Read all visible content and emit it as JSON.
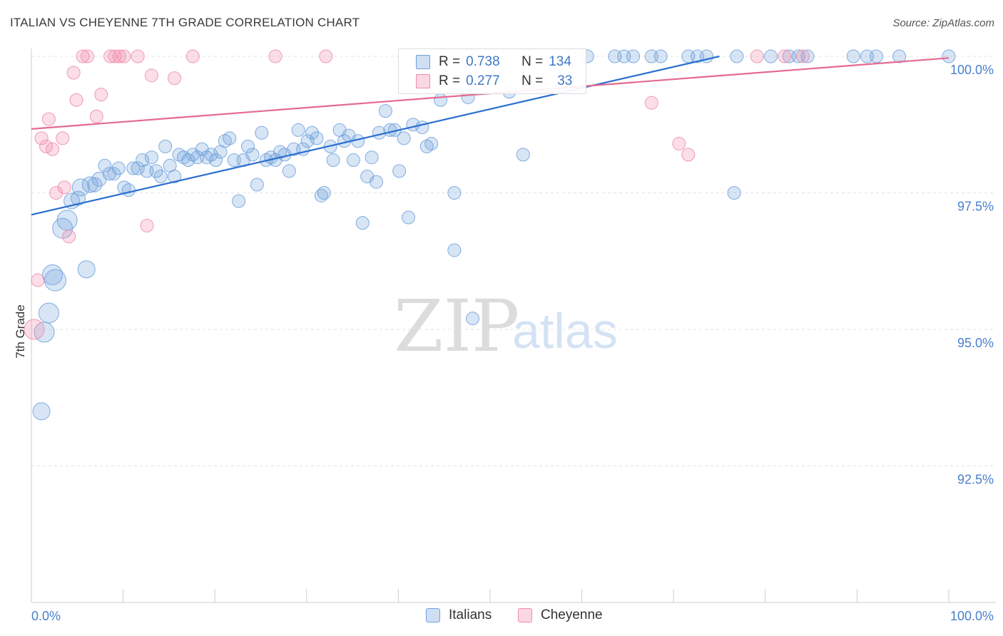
{
  "title": "ITALIAN VS CHEYENNE 7TH GRADE CORRELATION CHART",
  "source": "Source: ZipAtlas.com",
  "watermark": {
    "zip": "ZIP",
    "atlas": "atlas"
  },
  "legend": {
    "rows": [
      {
        "r_label": "R =",
        "r_value": "0.738",
        "n_label": "N =",
        "n_value": "134",
        "color": "#6fa0dc"
      },
      {
        "r_label": "R =",
        "r_value": "0.277",
        "n_label": "N =",
        "n_value": "33",
        "color": "#f08aaa"
      }
    ]
  },
  "bottom_legend": [
    {
      "label": "Italians",
      "color": "#6fa0dc"
    },
    {
      "label": "Cheyenne",
      "color": "#f08aaa"
    }
  ],
  "chart_data": {
    "type": "scatter",
    "title": "ITALIAN VS CHEYENNE 7TH GRADE CORRELATION CHART",
    "xlabel": "",
    "ylabel": "7th Grade",
    "xlim": [
      0,
      100
    ],
    "ylim": [
      90.2,
      100.35
    ],
    "x_tick_labels": [
      "0.0%",
      "100.0%"
    ],
    "y_ticks": [
      {
        "value": 100.0,
        "label": "100.0%"
      },
      {
        "value": 97.5,
        "label": "97.5%"
      },
      {
        "value": 95.0,
        "label": "95.0%"
      },
      {
        "value": 92.5,
        "label": "92.5%"
      }
    ],
    "grid": true,
    "series": [
      {
        "name": "Italians",
        "color": "#6fa0dc",
        "trend": {
          "x": [
            0,
            75
          ],
          "y": [
            97.1,
            100.0
          ]
        },
        "points": [
          [
            1.1,
            93.5,
            12
          ],
          [
            1.4,
            94.95,
            14
          ],
          [
            1.9,
            95.3,
            14
          ],
          [
            2.6,
            95.9,
            15
          ],
          [
            2.3,
            96.0,
            14
          ],
          [
            3.4,
            96.85,
            14
          ],
          [
            3.9,
            97.0,
            14
          ],
          [
            6.0,
            96.1,
            12
          ],
          [
            4.4,
            97.35,
            11
          ],
          [
            5.1,
            97.4,
            10
          ],
          [
            5.4,
            97.6,
            12
          ],
          [
            6.4,
            97.65,
            11
          ],
          [
            6.9,
            97.65,
            10
          ],
          [
            7.4,
            97.75,
            10
          ],
          [
            8.0,
            98.0,
            9
          ],
          [
            8.5,
            97.85,
            9
          ],
          [
            9.0,
            97.85,
            9
          ],
          [
            9.5,
            97.95,
            9
          ],
          [
            10.1,
            97.6,
            9
          ],
          [
            10.6,
            97.55,
            9
          ],
          [
            11.1,
            97.95,
            9
          ],
          [
            11.6,
            97.95,
            9
          ],
          [
            12.1,
            98.1,
            9
          ],
          [
            12.6,
            97.9,
            9
          ],
          [
            13.1,
            98.15,
            9
          ],
          [
            13.6,
            97.9,
            9
          ],
          [
            14.1,
            97.8,
            9
          ],
          [
            14.6,
            98.35,
            9
          ],
          [
            15.1,
            98.0,
            9
          ],
          [
            15.6,
            97.8,
            9
          ],
          [
            16.1,
            98.2,
            9
          ],
          [
            16.6,
            98.15,
            9
          ],
          [
            17.1,
            98.1,
            9
          ],
          [
            17.6,
            98.2,
            9
          ],
          [
            18.1,
            98.15,
            9
          ],
          [
            18.6,
            98.3,
            9
          ],
          [
            19.1,
            98.15,
            9
          ],
          [
            19.6,
            98.2,
            9
          ],
          [
            20.1,
            98.1,
            9
          ],
          [
            20.6,
            98.25,
            9
          ],
          [
            21.1,
            98.45,
            9
          ],
          [
            21.6,
            98.5,
            9
          ],
          [
            22.1,
            98.1,
            9
          ],
          [
            22.6,
            97.35,
            9
          ],
          [
            23.1,
            98.1,
            9
          ],
          [
            23.6,
            98.35,
            9
          ],
          [
            24.1,
            98.2,
            9
          ],
          [
            24.6,
            97.65,
            9
          ],
          [
            25.1,
            98.6,
            9
          ],
          [
            25.6,
            98.1,
            9
          ],
          [
            26.1,
            98.15,
            9
          ],
          [
            26.6,
            98.1,
            9
          ],
          [
            27.1,
            98.25,
            9
          ],
          [
            27.6,
            98.2,
            9
          ],
          [
            28.1,
            97.9,
            9
          ],
          [
            28.6,
            98.3,
            9
          ],
          [
            29.1,
            98.65,
            9
          ],
          [
            29.6,
            98.3,
            9
          ],
          [
            30.1,
            98.45,
            9
          ],
          [
            30.6,
            98.6,
            9
          ],
          [
            31.1,
            98.5,
            9
          ],
          [
            31.6,
            97.45,
            9
          ],
          [
            31.9,
            97.5,
            9
          ],
          [
            32.6,
            98.35,
            9
          ],
          [
            32.9,
            98.1,
            9
          ],
          [
            33.6,
            98.65,
            9
          ],
          [
            34.1,
            98.45,
            9
          ],
          [
            34.6,
            98.55,
            9
          ],
          [
            35.1,
            98.1,
            9
          ],
          [
            35.6,
            98.45,
            9
          ],
          [
            36.1,
            96.95,
            9
          ],
          [
            36.6,
            97.8,
            9
          ],
          [
            37.1,
            98.15,
            9
          ],
          [
            37.6,
            97.7,
            9
          ],
          [
            37.9,
            98.6,
            9
          ],
          [
            38.6,
            99.0,
            9
          ],
          [
            39.1,
            98.65,
            9
          ],
          [
            39.6,
            98.65,
            9
          ],
          [
            40.1,
            97.9,
            9
          ],
          [
            40.6,
            98.5,
            9
          ],
          [
            41.1,
            97.05,
            9
          ],
          [
            41.6,
            98.75,
            9
          ],
          [
            42.6,
            98.7,
            9
          ],
          [
            43.1,
            98.35,
            9
          ],
          [
            43.6,
            98.4,
            9
          ],
          [
            44.6,
            99.2,
            9
          ],
          [
            46.1,
            97.5,
            9
          ],
          [
            46.1,
            96.45,
            9
          ],
          [
            47.6,
            99.25,
            9
          ],
          [
            48.1,
            95.2,
            9
          ],
          [
            52.1,
            99.35,
            9
          ],
          [
            53.6,
            98.2,
            9
          ],
          [
            60.6,
            100.0,
            9
          ],
          [
            63.6,
            100.0,
            9
          ],
          [
            64.6,
            100.0,
            9
          ],
          [
            65.6,
            100.0,
            9
          ],
          [
            67.6,
            100.0,
            9
          ],
          [
            68.6,
            100.0,
            9
          ],
          [
            71.6,
            100.0,
            9
          ],
          [
            72.6,
            100.0,
            9
          ],
          [
            73.6,
            100.0,
            9
          ],
          [
            76.6,
            97.5,
            9
          ],
          [
            76.9,
            100.0,
            9
          ],
          [
            80.6,
            100.0,
            9
          ],
          [
            82.6,
            100.0,
            9
          ],
          [
            83.6,
            100.0,
            9
          ],
          [
            84.6,
            100.0,
            9
          ],
          [
            89.6,
            100.0,
            9
          ],
          [
            91.1,
            100.0,
            9
          ],
          [
            92.1,
            100.0,
            9
          ],
          [
            94.6,
            100.0,
            9
          ],
          [
            100.0,
            100.0,
            9
          ]
        ]
      },
      {
        "name": "Cheyenne",
        "color": "#f08aaa",
        "trend": {
          "x": [
            0,
            100
          ],
          "y": [
            98.67,
            99.97
          ]
        },
        "points": [
          [
            0.3,
            95.0,
            14
          ],
          [
            0.7,
            95.9,
            9
          ],
          [
            1.1,
            98.5,
            9
          ],
          [
            1.6,
            98.35,
            9
          ],
          [
            1.9,
            98.85,
            9
          ],
          [
            2.3,
            98.3,
            9
          ],
          [
            2.7,
            97.5,
            9
          ],
          [
            3.4,
            98.5,
            9
          ],
          [
            3.6,
            97.6,
            9
          ],
          [
            4.1,
            96.7,
            9
          ],
          [
            4.6,
            99.7,
            9
          ],
          [
            4.9,
            99.2,
            9
          ],
          [
            5.6,
            100.0,
            9
          ],
          [
            6.1,
            100.0,
            9
          ],
          [
            7.1,
            98.9,
            9
          ],
          [
            7.6,
            99.3,
            9
          ],
          [
            8.6,
            100.0,
            9
          ],
          [
            9.1,
            100.0,
            9
          ],
          [
            9.6,
            100.0,
            9
          ],
          [
            10.1,
            100.0,
            9
          ],
          [
            11.6,
            100.0,
            9
          ],
          [
            12.6,
            96.9,
            9
          ],
          [
            13.1,
            99.65,
            9
          ],
          [
            15.6,
            99.6,
            9
          ],
          [
            17.6,
            100.0,
            9
          ],
          [
            26.6,
            100.0,
            9
          ],
          [
            32.1,
            100.0,
            9
          ],
          [
            67.6,
            99.15,
            9
          ],
          [
            70.6,
            98.4,
            9
          ],
          [
            71.6,
            98.2,
            9
          ],
          [
            79.1,
            100.0,
            9
          ],
          [
            82.1,
            100.0,
            9
          ],
          [
            84.1,
            100.0,
            9
          ]
        ]
      }
    ]
  }
}
